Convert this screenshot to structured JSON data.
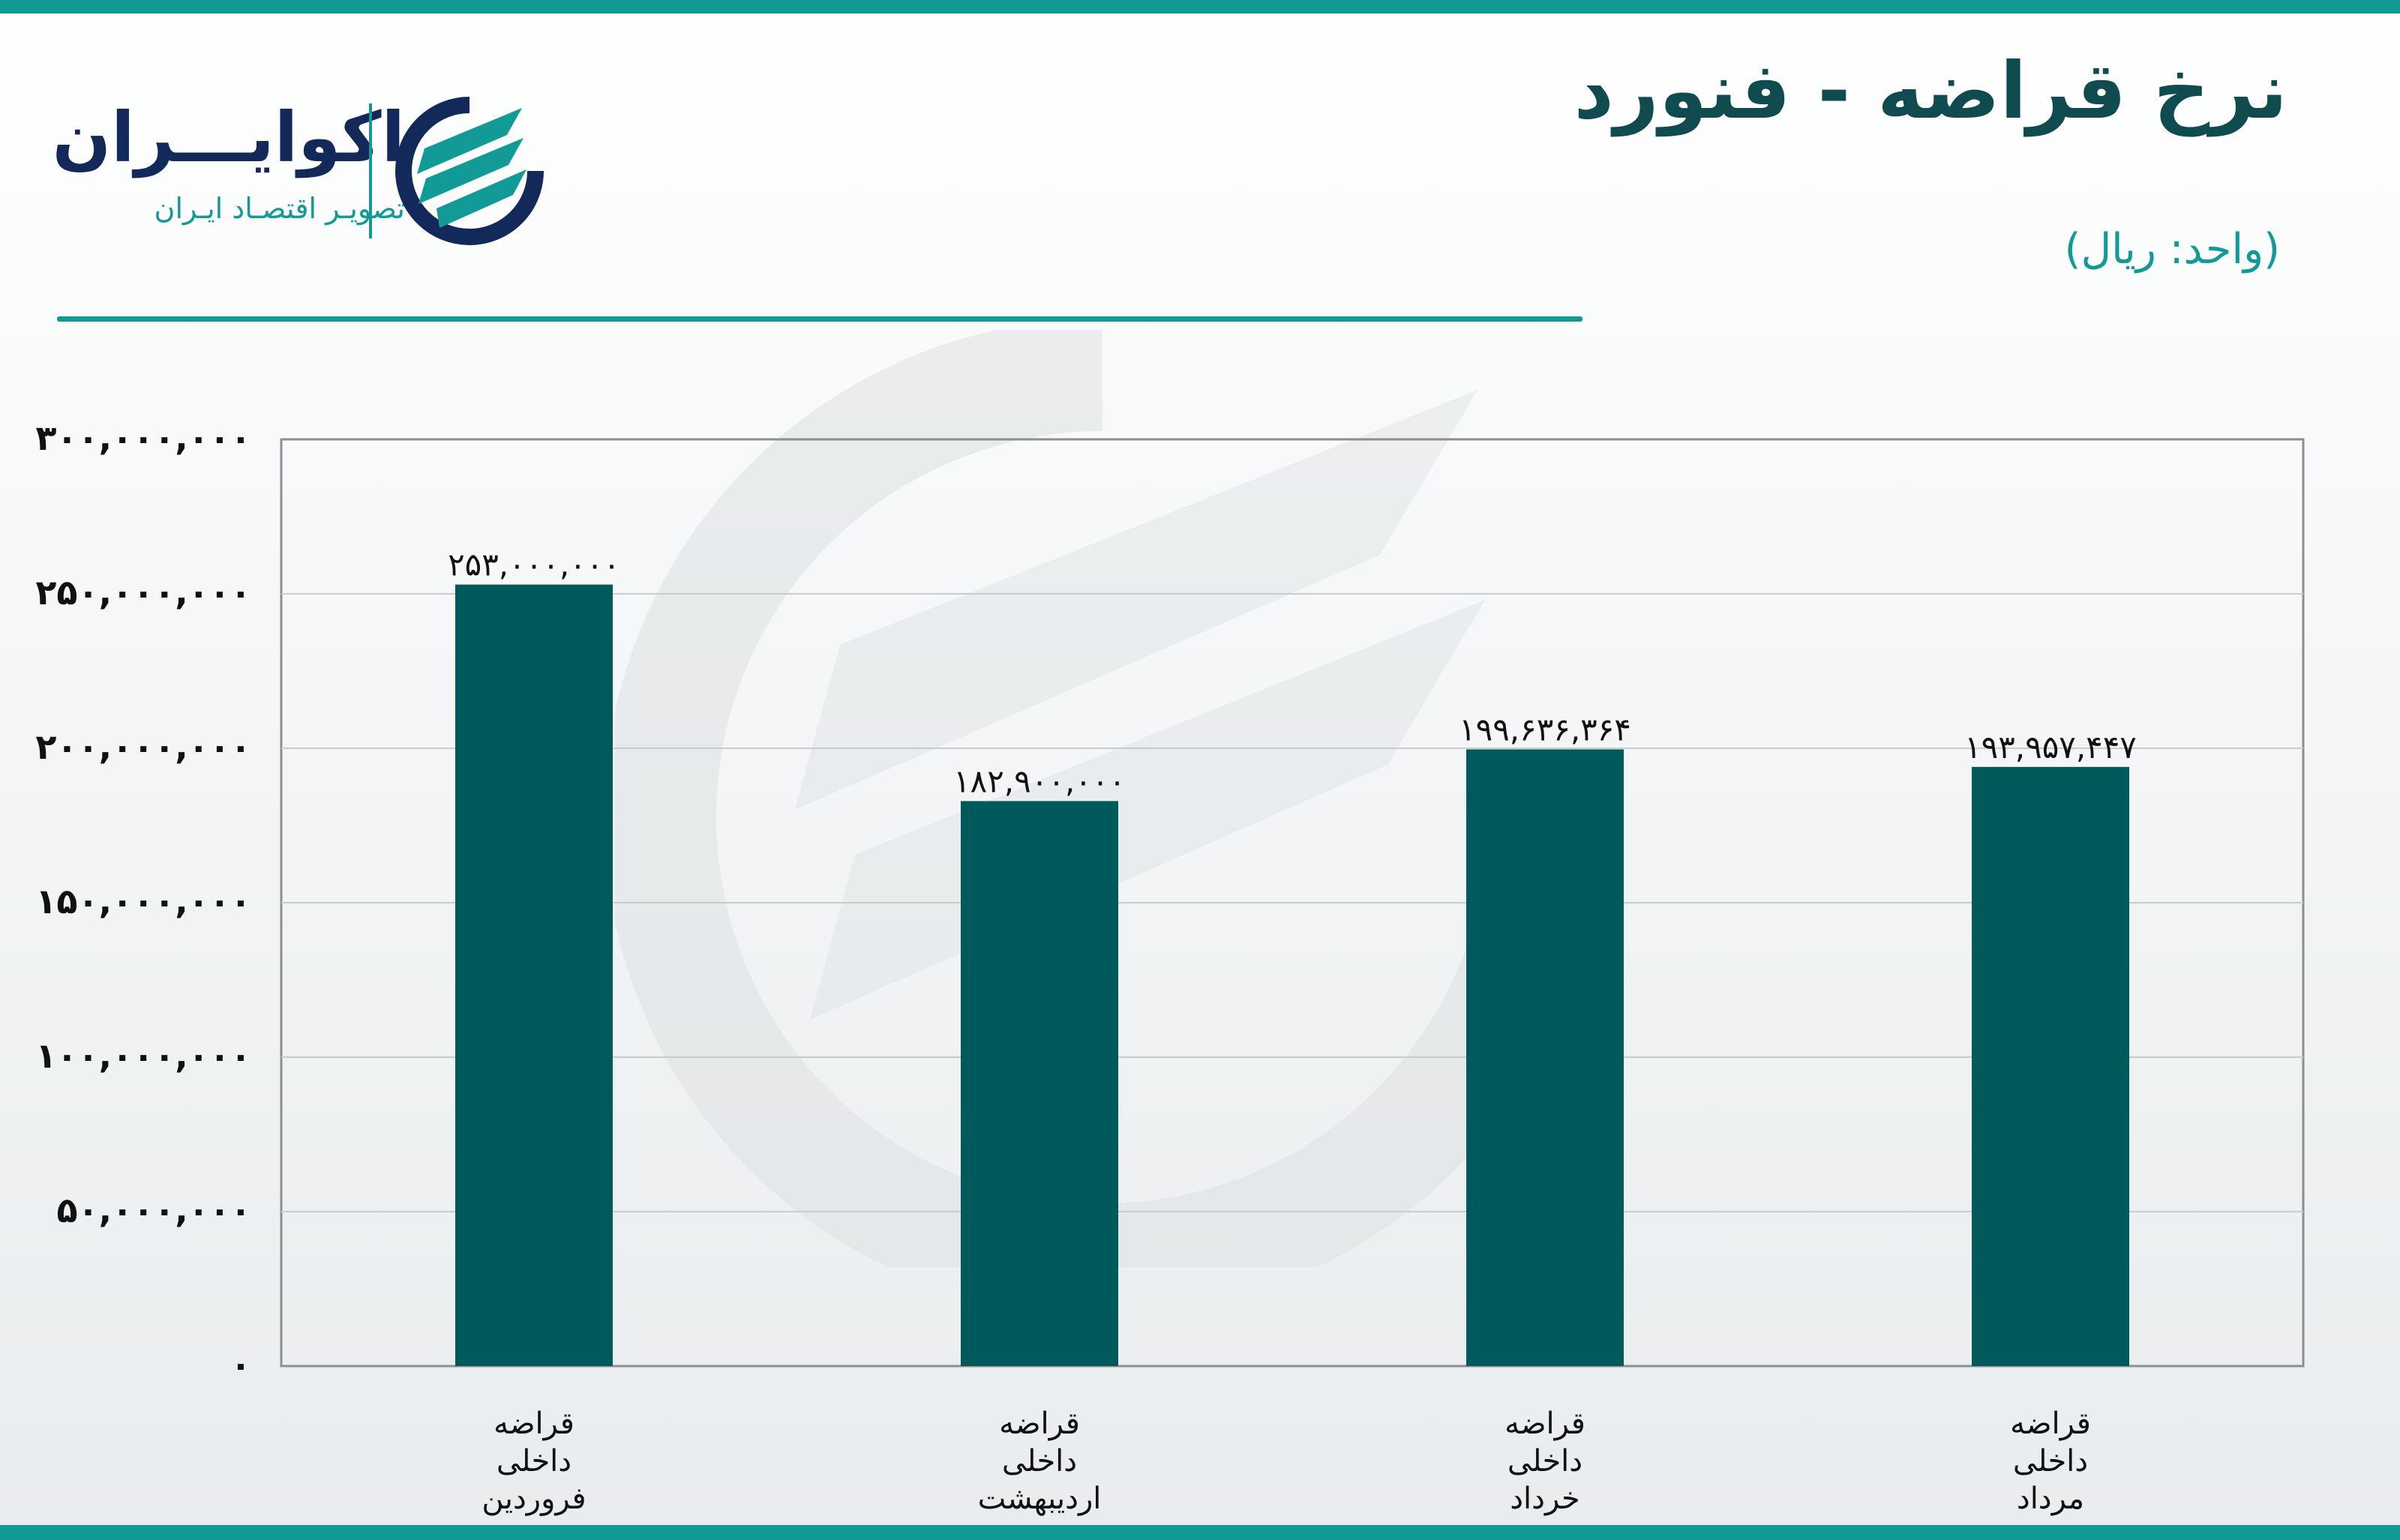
{
  "header": {
    "title": "نرخ قراضه - فنورد",
    "unit": "(واحد: ریال)"
  },
  "brand": {
    "name": "اکوایـــران",
    "tagline": "تصویـر اقتصـاد ایـران",
    "logo_icon": "ecoiran-logo-icon"
  },
  "colors": {
    "accent": "#119a96",
    "bar": "#005a5c",
    "title": "#0f4b4f",
    "brand_navy": "#12295a"
  },
  "chart_data": {
    "type": "bar",
    "categories": [
      [
        "قراضه",
        "داخلی",
        "فروردین"
      ],
      [
        "قراضه",
        "داخلی",
        "اردیبهشت"
      ],
      [
        "قراضه",
        "داخلی",
        "خرداد"
      ],
      [
        "قراضه",
        "داخلی",
        "مرداد"
      ]
    ],
    "values": [
      253000000,
      182900000,
      199636364,
      193957447
    ],
    "data_labels": [
      "۲۵۳,۰۰۰,۰۰۰",
      "۱۸۲,۹۰۰,۰۰۰",
      "۱۹۹,۶۳۶,۳۶۴",
      "۱۹۳,۹۵۷,۴۴۷"
    ],
    "y_ticks": [
      0,
      50000000,
      100000000,
      150000000,
      200000000,
      250000000,
      300000000
    ],
    "y_tick_labels": [
      "۰",
      "۵۰,۰۰۰,۰۰۰",
      "۱۰۰,۰۰۰,۰۰۰",
      "۱۵۰,۰۰۰,۰۰۰",
      "۲۰۰,۰۰۰,۰۰۰",
      "۲۵۰,۰۰۰,۰۰۰",
      "۳۰۰,۰۰۰,۰۰۰"
    ],
    "ylim": [
      0,
      300000000
    ],
    "title": "نرخ قراضه - فنورد",
    "xlabel": "",
    "ylabel": "",
    "grid": true,
    "legend": "none"
  }
}
